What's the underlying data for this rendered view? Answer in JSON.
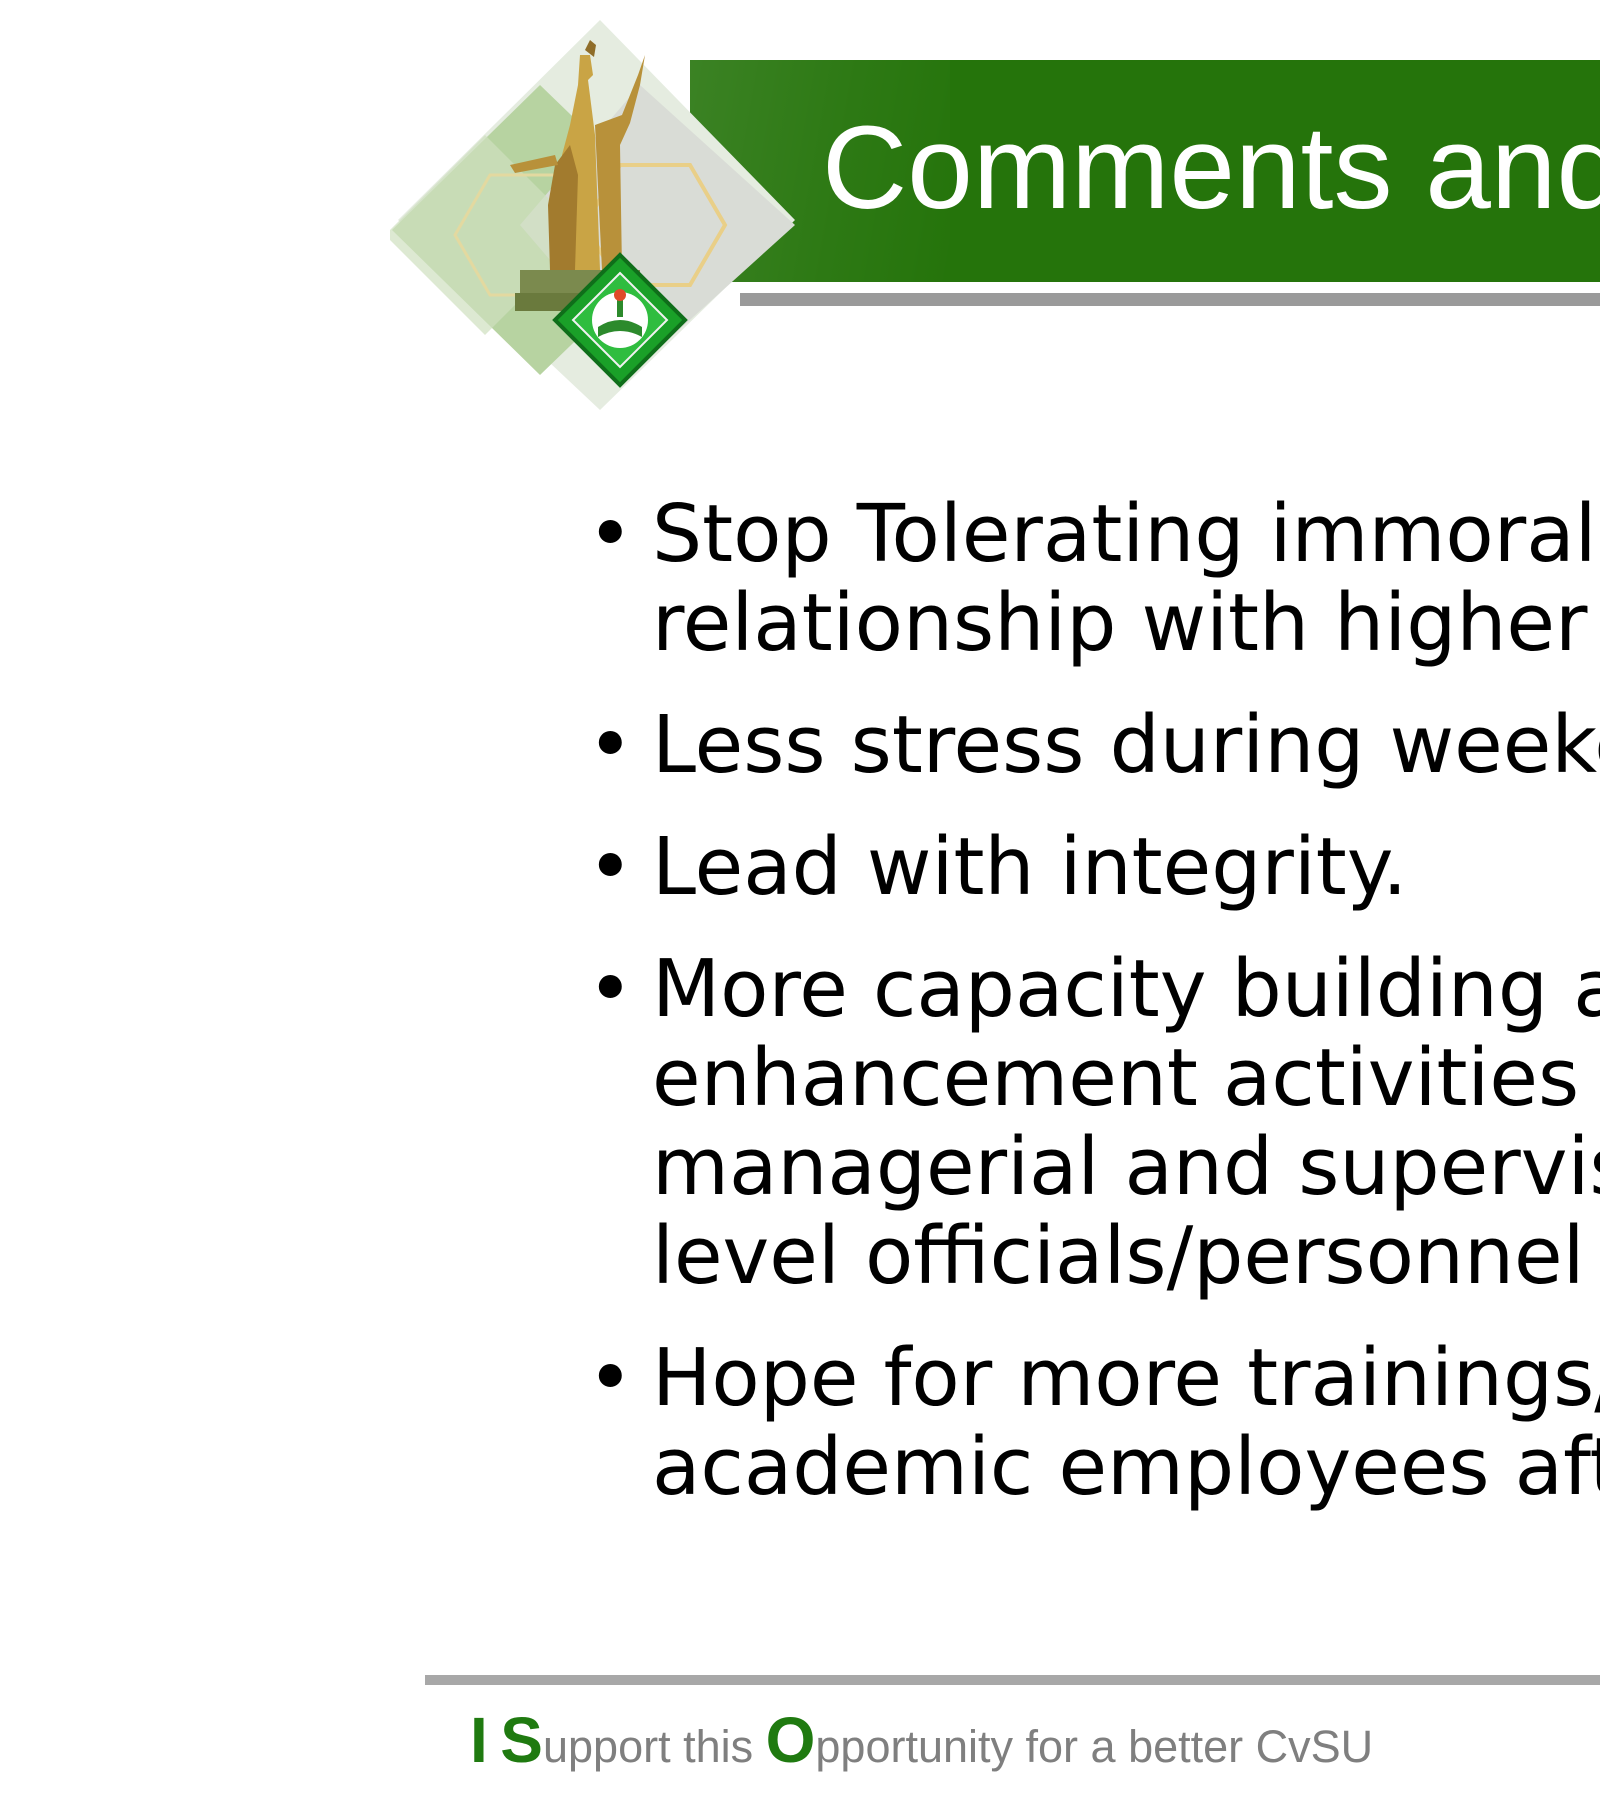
{
  "header": {
    "title": "Comments and"
  },
  "bullets": [
    {
      "lines": [
        "Stop Tolerating immoralit",
        "relationship with higher c"
      ]
    },
    {
      "lines": [
        "Less stress during weeker"
      ]
    },
    {
      "lines": [
        "Lead with integrity."
      ]
    },
    {
      "lines": [
        "More capacity building ar",
        "enhancement activities fo",
        "managerial and superviso",
        "level officials/personnel"
      ]
    },
    {
      "lines": [
        "Hope for more trainings/s",
        "academic employees afte"
      ]
    }
  ],
  "footer": {
    "cap_i": "I",
    "cap_s": "S",
    "rest_s": "upport this",
    "cap_o": "O",
    "rest_o": "pportunity for a better CvSU"
  },
  "colors": {
    "title_bar": "#25740b",
    "accent_green": "#1f7a10",
    "rule_gray": "#9a9a9a",
    "footer_text": "#7f7f7f"
  },
  "icons": {
    "logo": "university-seal-with-statue-icon"
  }
}
